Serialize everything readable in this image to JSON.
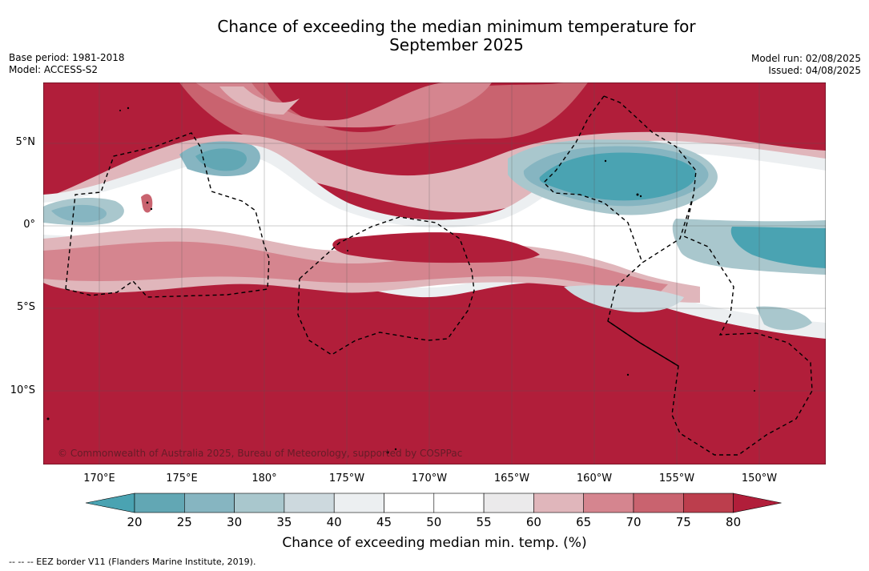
{
  "title_line1": "Chance of exceeding the median minimum temperature for",
  "title_line2": "September 2025",
  "meta_left": {
    "base_period": "Base period: 1981-2018",
    "model": "Model: ACCESS-S2"
  },
  "meta_right": {
    "model_run": "Model run: 02/08/2025",
    "issued": "Issued: 04/08/2025"
  },
  "map": {
    "lat_labels": [
      "5°N",
      "0°",
      "5°S",
      "10°S"
    ],
    "lon_labels": [
      "170°E",
      "175°E",
      "180°",
      "175°W",
      "170°W",
      "165°W",
      "160°W",
      "155°W",
      "150°W"
    ],
    "copyright": "© Commonwealth of Australia 2025, Bureau of Meteorology, supported by COSPPac"
  },
  "colorbar": {
    "ticks": [
      "20",
      "25",
      "30",
      "35",
      "40",
      "45",
      "50",
      "55",
      "60",
      "65",
      "70",
      "75",
      "80"
    ],
    "colors": [
      "#62a7b4",
      "#86b5c1",
      "#a9c7cd",
      "#cdd9de",
      "#eceff1",
      "#ffffff",
      "#ffffff",
      "#ebeaeb",
      "#e0b6bb",
      "#d5858f",
      "#c9636f",
      "#bc3e4d"
    ],
    "below_color": "#4aa3b2",
    "above_color": "#b11e3a",
    "label": "Chance of exceeding median min. temp. (%)"
  },
  "legend_note": "--  --  -- EEZ border V11 (Flanders Marine Institute, 2019)."
}
